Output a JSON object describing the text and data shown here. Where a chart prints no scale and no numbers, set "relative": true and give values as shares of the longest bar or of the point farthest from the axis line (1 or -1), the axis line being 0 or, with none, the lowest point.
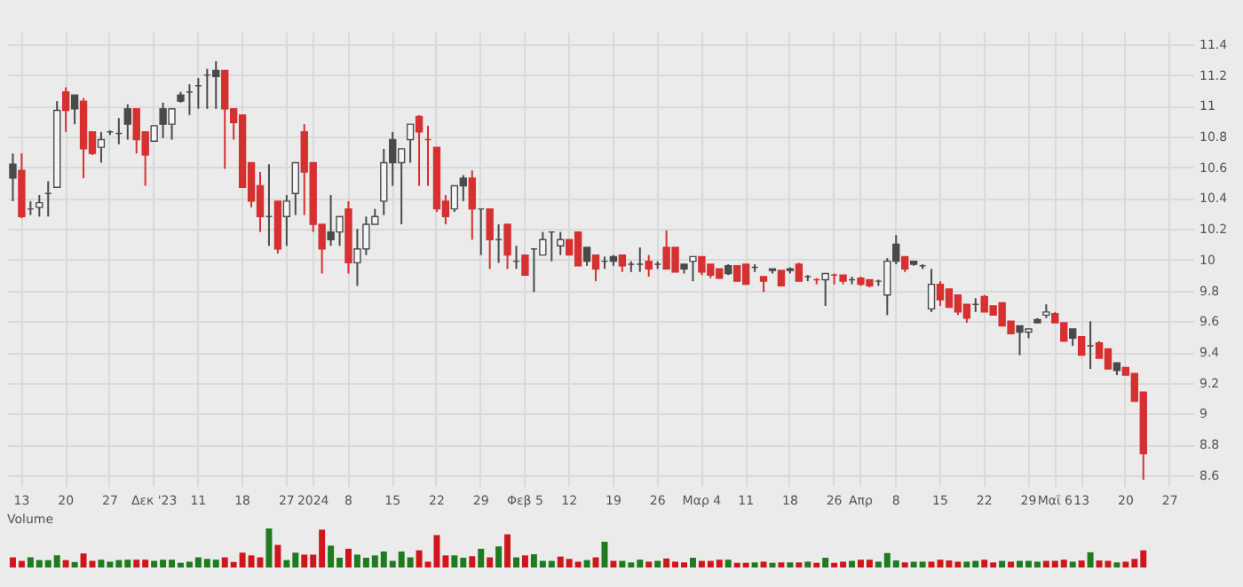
{
  "chart_data": [
    {
      "type": "candlestick",
      "categories": [
        null,
        "13",
        null,
        null,
        null,
        null,
        "20",
        null,
        null,
        null,
        null,
        "27",
        null,
        null,
        null,
        null,
        "Δεκ '23",
        null,
        null,
        null,
        null,
        "11",
        null,
        null,
        null,
        null,
        "18",
        null,
        null,
        null,
        null,
        "27",
        null,
        null,
        "2024",
        null,
        null,
        null,
        "8",
        null,
        null,
        null,
        null,
        "15",
        null,
        null,
        null,
        null,
        "22",
        null,
        null,
        null,
        null,
        "29",
        null,
        null,
        null,
        null,
        "Φεβ 5",
        null,
        null,
        null,
        null,
        "12",
        null,
        null,
        null,
        null,
        "19",
        null,
        null,
        null,
        null,
        "26",
        null,
        null,
        null,
        null,
        "Μαρ 4",
        null,
        null,
        null,
        null,
        "11",
        null,
        null,
        null,
        null,
        "18",
        null,
        null,
        null,
        null,
        "26",
        null,
        null,
        "Απρ",
        null,
        null,
        null,
        "8",
        null,
        null,
        null,
        null,
        "15",
        null,
        null,
        null,
        null,
        "22",
        null,
        null,
        null,
        null,
        "29",
        null,
        null,
        "Μαϊ 6",
        null,
        null,
        "13",
        null,
        null,
        null,
        null,
        "20",
        null,
        null,
        null,
        null,
        "27",
        null,
        null
      ],
      "ohlc": [
        [
          10.62,
          10.69,
          10.38,
          10.53
        ],
        [
          10.58,
          10.69,
          10.27,
          10.28
        ],
        [
          10.33,
          10.38,
          10.29,
          10.33
        ],
        [
          10.34,
          10.42,
          10.28,
          10.37
        ],
        [
          10.43,
          10.51,
          10.28,
          10.43
        ],
        [
          10.47,
          11.03,
          10.47,
          10.97
        ],
        [
          11.09,
          11.12,
          10.83,
          10.97
        ],
        [
          11.07,
          11.07,
          10.88,
          10.98
        ],
        [
          11.03,
          11.05,
          10.53,
          10.72
        ],
        [
          10.83,
          10.83,
          10.68,
          10.69
        ],
        [
          10.73,
          10.83,
          10.63,
          10.78
        ],
        [
          10.83,
          10.84,
          10.81,
          10.83
        ],
        [
          10.82,
          10.92,
          10.75,
          10.82
        ],
        [
          10.98,
          11.01,
          10.78,
          10.88
        ],
        [
          10.98,
          10.98,
          10.69,
          10.78
        ],
        [
          10.83,
          10.83,
          10.48,
          10.68
        ],
        [
          10.77,
          10.87,
          10.77,
          10.87
        ],
        [
          10.98,
          11.02,
          10.79,
          10.88
        ],
        [
          10.88,
          10.98,
          10.78,
          10.98
        ],
        [
          11.07,
          11.09,
          11.02,
          11.03
        ],
        [
          11.09,
          11.14,
          10.94,
          11.09
        ],
        [
          11.13,
          11.18,
          10.98,
          11.13
        ],
        [
          11.2,
          11.24,
          10.98,
          11.2
        ],
        [
          11.23,
          11.29,
          10.98,
          11.19
        ],
        [
          11.23,
          11.23,
          10.59,
          10.98
        ],
        [
          10.98,
          10.98,
          10.78,
          10.89
        ],
        [
          10.94,
          10.94,
          10.47,
          10.47
        ],
        [
          10.63,
          10.63,
          10.34,
          10.38
        ],
        [
          10.48,
          10.57,
          10.18,
          10.28
        ],
        [
          10.28,
          10.62,
          10.09,
          10.28
        ],
        [
          10.38,
          10.38,
          10.04,
          10.07
        ],
        [
          10.28,
          10.42,
          10.09,
          10.38
        ],
        [
          10.43,
          10.63,
          10.29,
          10.63
        ],
        [
          10.83,
          10.88,
          10.29,
          10.57
        ],
        [
          10.63,
          10.63,
          10.18,
          10.23
        ],
        [
          10.23,
          10.23,
          9.91,
          10.07
        ],
        [
          10.18,
          10.42,
          10.09,
          10.13
        ],
        [
          10.18,
          10.28,
          10.09,
          10.28
        ],
        [
          10.33,
          10.38,
          9.91,
          9.98
        ],
        [
          9.98,
          10.2,
          9.83,
          10.07
        ],
        [
          10.07,
          10.28,
          10.03,
          10.23
        ],
        [
          10.23,
          10.33,
          10.23,
          10.28
        ],
        [
          10.38,
          10.72,
          10.29,
          10.63
        ],
        [
          10.78,
          10.83,
          10.48,
          10.63
        ],
        [
          10.63,
          10.72,
          10.23,
          10.72
        ],
        [
          10.78,
          10.88,
          10.63,
          10.88
        ],
        [
          10.93,
          10.94,
          10.48,
          10.83
        ],
        [
          10.78,
          10.87,
          10.48,
          10.78
        ],
        [
          10.73,
          10.73,
          10.31,
          10.33
        ],
        [
          10.38,
          10.42,
          10.23,
          10.28
        ],
        [
          10.33,
          10.48,
          10.31,
          10.48
        ],
        [
          10.53,
          10.55,
          10.38,
          10.48
        ],
        [
          10.53,
          10.58,
          10.13,
          10.33
        ],
        [
          10.33,
          10.33,
          10.03,
          10.33
        ],
        [
          10.33,
          10.33,
          9.94,
          10.13
        ],
        [
          10.13,
          10.23,
          9.98,
          10.13
        ],
        [
          10.23,
          10.23,
          9.94,
          10.03
        ],
        [
          9.99,
          10.09,
          9.94,
          9.99
        ],
        [
          10.03,
          10.03,
          9.9,
          9.9
        ],
        [
          10.07,
          10.07,
          9.79,
          10.07
        ],
        [
          10.03,
          10.18,
          10.03,
          10.13
        ],
        [
          10.18,
          10.18,
          9.99,
          10.18
        ],
        [
          10.09,
          10.18,
          10.03,
          10.13
        ],
        [
          10.13,
          10.13,
          10.03,
          10.03
        ],
        [
          10.18,
          10.18,
          9.96,
          9.96
        ],
        [
          10.08,
          10.08,
          9.96,
          9.99
        ],
        [
          10.03,
          10.03,
          9.86,
          9.94
        ],
        [
          9.99,
          10.02,
          9.94,
          9.99
        ],
        [
          10.02,
          10.03,
          9.96,
          9.99
        ],
        [
          10.03,
          10.03,
          9.92,
          9.96
        ],
        [
          9.97,
          9.99,
          9.92,
          9.97
        ],
        [
          9.97,
          10.08,
          9.92,
          9.97
        ],
        [
          9.99,
          10.03,
          9.89,
          9.94
        ],
        [
          9.97,
          9.99,
          9.94,
          9.97
        ],
        [
          10.08,
          10.19,
          9.94,
          9.94
        ],
        [
          10.08,
          10.08,
          9.92,
          9.92
        ],
        [
          9.97,
          9.97,
          9.91,
          9.94
        ],
        [
          9.99,
          10.02,
          9.86,
          10.02
        ],
        [
          10.02,
          10.02,
          9.9,
          9.92
        ],
        [
          9.97,
          9.97,
          9.88,
          9.9
        ],
        [
          9.94,
          9.94,
          9.88,
          9.88
        ],
        [
          9.96,
          9.97,
          9.9,
          9.91
        ],
        [
          9.96,
          9.96,
          9.86,
          9.86
        ],
        [
          9.97,
          9.97,
          9.84,
          9.84
        ],
        [
          9.95,
          9.97,
          9.92,
          9.95
        ],
        [
          9.89,
          9.89,
          9.79,
          9.86
        ],
        [
          9.94,
          9.94,
          9.91,
          9.93
        ],
        [
          9.93,
          9.93,
          9.83,
          9.83
        ],
        [
          9.94,
          9.95,
          9.91,
          9.93
        ],
        [
          9.97,
          9.98,
          9.86,
          9.86
        ],
        [
          9.89,
          9.9,
          9.86,
          9.89
        ],
        [
          9.87,
          9.88,
          9.84,
          9.87
        ],
        [
          9.87,
          9.91,
          9.7,
          9.91
        ],
        [
          9.9,
          9.91,
          9.84,
          9.9
        ],
        [
          9.9,
          9.9,
          9.84,
          9.86
        ],
        [
          9.87,
          9.89,
          9.84,
          9.87
        ],
        [
          9.88,
          9.89,
          9.83,
          9.84
        ],
        [
          9.87,
          9.87,
          9.82,
          9.83
        ],
        [
          9.86,
          9.87,
          9.83,
          9.86
        ],
        [
          9.77,
          10.01,
          9.64,
          9.99
        ],
        [
          10.1,
          10.16,
          9.97,
          9.99
        ],
        [
          10.02,
          10.02,
          9.92,
          9.94
        ],
        [
          9.99,
          9.99,
          9.96,
          9.97
        ],
        [
          9.96,
          9.97,
          9.94,
          9.96
        ],
        [
          9.68,
          9.94,
          9.66,
          9.84
        ],
        [
          9.84,
          9.86,
          9.7,
          9.74
        ],
        [
          9.81,
          9.81,
          9.69,
          9.69
        ],
        [
          9.77,
          9.77,
          9.64,
          9.66
        ],
        [
          9.71,
          9.71,
          9.59,
          9.62
        ],
        [
          9.71,
          9.75,
          9.66,
          9.71
        ],
        [
          9.76,
          9.77,
          9.66,
          9.66
        ],
        [
          9.7,
          9.7,
          9.64,
          9.64
        ],
        [
          9.72,
          9.72,
          9.57,
          9.57
        ],
        [
          9.6,
          9.6,
          9.52,
          9.52
        ],
        [
          9.57,
          9.57,
          9.38,
          9.53
        ],
        [
          9.53,
          9.55,
          9.49,
          9.55
        ],
        [
          9.61,
          9.62,
          9.59,
          9.59
        ],
        [
          9.64,
          9.71,
          9.62,
          9.66
        ],
        [
          9.65,
          9.66,
          9.59,
          9.59
        ],
        [
          9.59,
          9.59,
          9.47,
          9.47
        ],
        [
          9.55,
          9.55,
          9.44,
          9.49
        ],
        [
          9.5,
          9.5,
          9.38,
          9.38
        ],
        [
          9.44,
          9.6,
          9.29,
          9.44
        ],
        [
          9.46,
          9.47,
          9.36,
          9.36
        ],
        [
          9.42,
          9.42,
          9.29,
          9.29
        ],
        [
          9.33,
          9.33,
          9.25,
          9.28
        ],
        [
          9.3,
          9.3,
          9.25,
          9.25
        ],
        [
          9.26,
          9.26,
          9.08,
          9.08
        ],
        [
          9.14,
          9.14,
          8.57,
          8.74
        ],
        null,
        null,
        null,
        null,
        null
      ],
      "colors": [
        "#4a4a4a",
        "#d63031",
        "#4a4a4a",
        "#f4f4f4",
        "#4a4a4a",
        "#f4f4f4",
        "#d63031",
        "#4a4a4a",
        "#d63031",
        "#d63031",
        "#f4f4f4",
        "#4a4a4a",
        "#4a4a4a",
        "#4a4a4a",
        "#d63031",
        "#d63031",
        "#f4f4f4",
        "#4a4a4a",
        "#f4f4f4",
        "#4a4a4a",
        "#4a4a4a",
        "#4a4a4a",
        "#4a4a4a",
        "#4a4a4a",
        "#d63031",
        "#d63031",
        "#d63031",
        "#d63031",
        "#d63031",
        "#4a4a4a",
        "#d63031",
        "#f4f4f4",
        "#f4f4f4",
        "#d63031",
        "#d63031",
        "#d63031",
        "#4a4a4a",
        "#f4f4f4",
        "#d63031",
        "#f4f4f4",
        "#f4f4f4",
        "#f4f4f4",
        "#f4f4f4",
        "#4a4a4a",
        "#f4f4f4",
        "#f4f4f4",
        "#d63031",
        "#d63031",
        "#d63031",
        "#d63031",
        "#f4f4f4",
        "#4a4a4a",
        "#d63031",
        "#4a4a4a",
        "#d63031",
        "#4a4a4a",
        "#d63031",
        "#4a4a4a",
        "#d63031",
        "#4a4a4a",
        "#f4f4f4",
        "#4a4a4a",
        "#f4f4f4",
        "#d63031",
        "#d63031",
        "#4a4a4a",
        "#d63031",
        "#4a4a4a",
        "#4a4a4a",
        "#d63031",
        "#4a4a4a",
        "#4a4a4a",
        "#d63031",
        "#4a4a4a",
        "#d63031",
        "#d63031",
        "#4a4a4a",
        "#f4f4f4",
        "#d63031",
        "#d63031",
        "#d63031",
        "#4a4a4a",
        "#d63031",
        "#d63031",
        "#4a4a4a",
        "#d63031",
        "#4a4a4a",
        "#d63031",
        "#4a4a4a",
        "#d63031",
        "#4a4a4a",
        "#d63031",
        "#f4f4f4",
        "#d63031",
        "#d63031",
        "#4a4a4a",
        "#d63031",
        "#d63031",
        "#4a4a4a",
        "#f4f4f4",
        "#4a4a4a",
        "#d63031",
        "#4a4a4a",
        "#4a4a4a",
        "#f4f4f4",
        "#d63031",
        "#d63031",
        "#d63031",
        "#d63031",
        "#4a4a4a",
        "#d63031",
        "#d63031",
        "#d63031",
        "#d63031",
        "#4a4a4a",
        "#f4f4f4",
        "#4a4a4a",
        "#f4f4f4",
        "#d63031",
        "#d63031",
        "#4a4a4a",
        "#d63031",
        "#4a4a4a",
        "#d63031",
        "#d63031",
        "#4a4a4a",
        "#d63031",
        "#d63031",
        "#d63031",
        null,
        null,
        null,
        null,
        null
      ],
      "ylim": [
        8.53,
        11.48
      ],
      "yticks": [
        8.6,
        8.8,
        9,
        9.2,
        9.4,
        9.6,
        9.8,
        10,
        10.2,
        10.4,
        10.6,
        10.8,
        11,
        11.2,
        11.4
      ],
      "grid": true
    },
    {
      "type": "bar",
      "title": "Volume",
      "relative": true,
      "categories": [
        null,
        null,
        null,
        null,
        null,
        null,
        null,
        null,
        null,
        null,
        null,
        null,
        null,
        null,
        null,
        null,
        null,
        null,
        null,
        null,
        null,
        null,
        null,
        null,
        null,
        null,
        null,
        null,
        null,
        null,
        null,
        null,
        null,
        null,
        null,
        null,
        null,
        null,
        null,
        null,
        null,
        null,
        null,
        null,
        null,
        null,
        null,
        null,
        null,
        null,
        null,
        null,
        null,
        null,
        null,
        null,
        null,
        null,
        null,
        null,
        null,
        null,
        null,
        null,
        null,
        null,
        null,
        null,
        null,
        null,
        null,
        null,
        null,
        null,
        null,
        null,
        null,
        null,
        null,
        null,
        null,
        null,
        null,
        null,
        null,
        null,
        null,
        null,
        null,
        null,
        null,
        null,
        null,
        null,
        null,
        null,
        null,
        null,
        null,
        null,
        null,
        null,
        null,
        null,
        null,
        null,
        null,
        null,
        null,
        null,
        null,
        null,
        null,
        null,
        null,
        null,
        null,
        null,
        null,
        null,
        null,
        null,
        null,
        null,
        null,
        null,
        null,
        null,
        null,
        null,
        null,
        null,
        null,
        null
      ],
      "values": [
        0.26,
        0.17,
        0.26,
        0.19,
        0.19,
        0.31,
        0.19,
        0.14,
        0.36,
        0.17,
        0.2,
        0.15,
        0.19,
        0.2,
        0.2,
        0.2,
        0.17,
        0.2,
        0.2,
        0.12,
        0.15,
        0.26,
        0.22,
        0.2,
        0.26,
        0.14,
        0.38,
        0.31,
        0.26,
        1,
        0.58,
        0.19,
        0.38,
        0.33,
        0.33,
        0.97,
        0.56,
        0.25,
        0.48,
        0.33,
        0.25,
        0.31,
        0.41,
        0.17,
        0.41,
        0.26,
        0.44,
        0.15,
        0.83,
        0.31,
        0.31,
        0.25,
        0.29,
        0.48,
        0.26,
        0.54,
        0.85,
        0.26,
        0.31,
        0.34,
        0.17,
        0.17,
        0.28,
        0.22,
        0.15,
        0.19,
        0.26,
        0.66,
        0.17,
        0.17,
        0.13,
        0.2,
        0.15,
        0.17,
        0.23,
        0.15,
        0.13,
        0.25,
        0.17,
        0.17,
        0.2,
        0.2,
        0.12,
        0.12,
        0.13,
        0.15,
        0.12,
        0.13,
        0.13,
        0.13,
        0.15,
        0.12,
        0.25,
        0.12,
        0.15,
        0.17,
        0.2,
        0.2,
        0.15,
        0.37,
        0.18,
        0.13,
        0.15,
        0.15,
        0.15,
        0.2,
        0.18,
        0.15,
        0.15,
        0.17,
        0.2,
        0.13,
        0.17,
        0.15,
        0.17,
        0.17,
        0.15,
        0.17,
        0.17,
        0.2,
        0.15,
        0.18,
        0.39,
        0.18,
        0.17,
        0.13,
        0.15,
        0.22,
        0.44,
        null,
        null,
        null,
        null,
        null
      ],
      "colors": [
        "#d0161b",
        "#d0161b",
        "#1e7b1e",
        "#1e7b1e",
        "#1e7b1e",
        "#1e7b1e",
        "#d0161b",
        "#1e7b1e",
        "#d0161b",
        "#d0161b",
        "#1e7b1e",
        "#1e7b1e",
        "#1e7b1e",
        "#1e7b1e",
        "#d0161b",
        "#d0161b",
        "#1e7b1e",
        "#1e7b1e",
        "#1e7b1e",
        "#1e7b1e",
        "#1e7b1e",
        "#1e7b1e",
        "#1e7b1e",
        "#1e7b1e",
        "#d0161b",
        "#d0161b",
        "#d0161b",
        "#d0161b",
        "#d0161b",
        "#1e7b1e",
        "#d0161b",
        "#1e7b1e",
        "#1e7b1e",
        "#d0161b",
        "#d0161b",
        "#d0161b",
        "#1e7b1e",
        "#1e7b1e",
        "#d0161b",
        "#1e7b1e",
        "#1e7b1e",
        "#1e7b1e",
        "#1e7b1e",
        "#1e7b1e",
        "#1e7b1e",
        "#1e7b1e",
        "#d0161b",
        "#d0161b",
        "#d0161b",
        "#d0161b",
        "#1e7b1e",
        "#1e7b1e",
        "#d0161b",
        "#1e7b1e",
        "#d0161b",
        "#1e7b1e",
        "#d0161b",
        "#1e7b1e",
        "#d0161b",
        "#1e7b1e",
        "#1e7b1e",
        "#1e7b1e",
        "#d0161b",
        "#d0161b",
        "#d0161b",
        "#1e7b1e",
        "#d0161b",
        "#1e7b1e",
        "#d0161b",
        "#1e7b1e",
        "#1e7b1e",
        "#1e7b1e",
        "#d0161b",
        "#1e7b1e",
        "#d0161b",
        "#d0161b",
        "#d0161b",
        "#1e7b1e",
        "#d0161b",
        "#d0161b",
        "#d0161b",
        "#1e7b1e",
        "#d0161b",
        "#d0161b",
        "#1e7b1e",
        "#d0161b",
        "#1e7b1e",
        "#d0161b",
        "#1e7b1e",
        "#d0161b",
        "#1e7b1e",
        "#d0161b",
        "#1e7b1e",
        "#d0161b",
        "#d0161b",
        "#1e7b1e",
        "#d0161b",
        "#d0161b",
        "#1e7b1e",
        "#1e7b1e",
        "#1e7b1e",
        "#d0161b",
        "#1e7b1e",
        "#1e7b1e",
        "#d0161b",
        "#d0161b",
        "#d0161b",
        "#d0161b",
        "#1e7b1e",
        "#1e7b1e",
        "#d0161b",
        "#d0161b",
        "#1e7b1e",
        "#d0161b",
        "#1e7b1e",
        "#1e7b1e",
        "#1e7b1e",
        "#d0161b",
        "#d0161b",
        "#d0161b",
        "#1e7b1e",
        "#d0161b",
        "#1e7b1e",
        "#d0161b",
        "#d0161b",
        "#1e7b1e",
        "#d0161b",
        "#d0161b",
        "#d0161b",
        null,
        null,
        null,
        null,
        null
      ]
    }
  ]
}
